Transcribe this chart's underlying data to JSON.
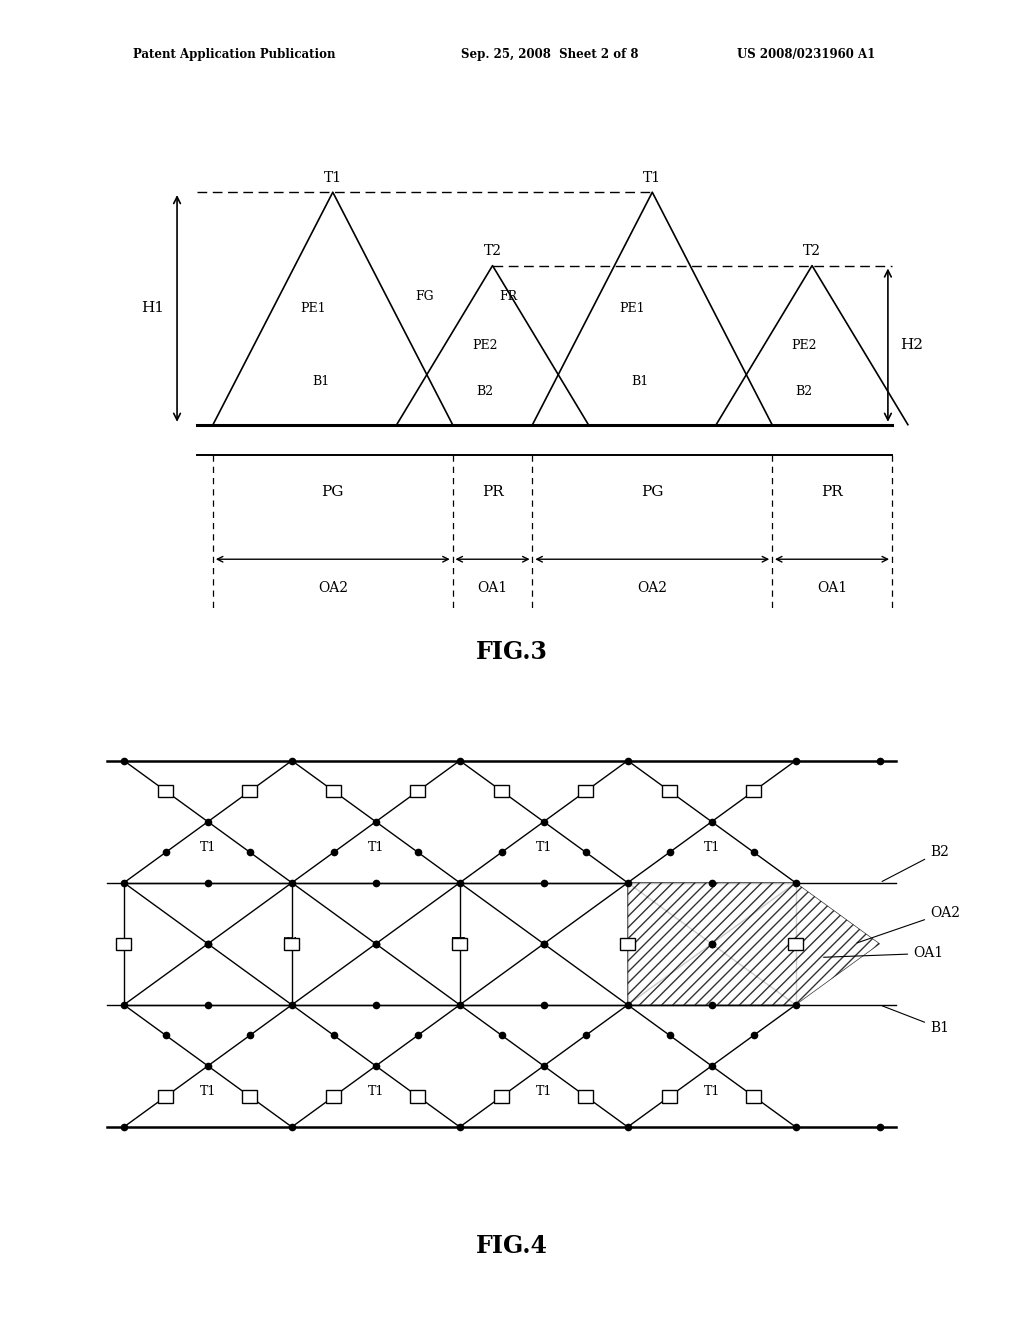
{
  "bg_color": "#ffffff",
  "header_left": "Patent Application Publication",
  "header_mid": "Sep. 25, 2008  Sheet 2 of 8",
  "header_right": "US 2008/0231960 A1",
  "fig3_label": "FIG.3",
  "fig4_label": "FIG.4",
  "fig3_xlim": [
    0,
    10
  ],
  "fig3_ylim": [
    -3.2,
    5.0
  ],
  "fig4_xlim": [
    0,
    10
  ],
  "fig4_ylim": [
    -3.8,
    3.8
  ]
}
